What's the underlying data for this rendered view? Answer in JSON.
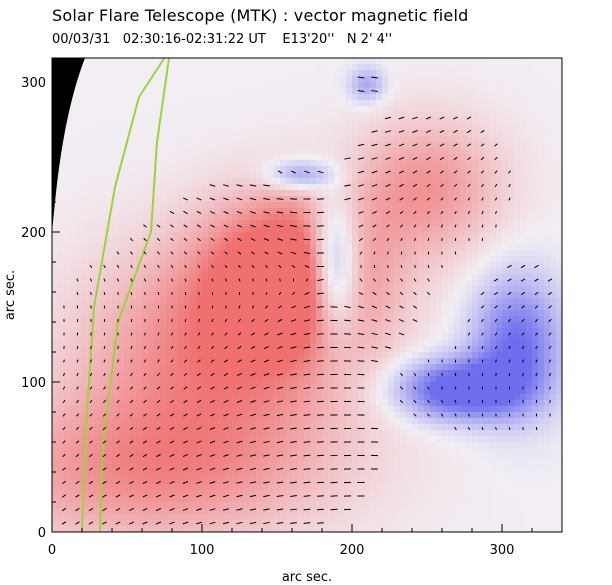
{
  "header": {
    "title": "Solar Flare Telescope (MTK) : vector magnetic field",
    "date": "00/03/31",
    "time_range": "02:30:16-02:31:22 UT",
    "position_e": "E13'20''",
    "position_n": "N 2' 4''"
  },
  "colors": {
    "positive": "#f07070",
    "negative": "#6d6dee",
    "neutral": "#f2eef4",
    "limb_contour": "#9bd33f",
    "off_disk": "#000000",
    "vectors": "#000000"
  },
  "chart_data": {
    "type": "heatmap",
    "title": "Solar Flare Telescope (MTK) : vector magnetic field",
    "xlabel": "arc sec.",
    "ylabel": "arc sec.",
    "xlim": [
      0,
      340
    ],
    "ylim": [
      0,
      316
    ],
    "x_ticks": [
      0,
      100,
      200,
      300
    ],
    "y_ticks": [
      0,
      100,
      200,
      300
    ],
    "grid": false,
    "polarity_regions": [
      {
        "polarity": "positive",
        "cx": 160,
        "cy": 172,
        "rx": 55,
        "ry": 50,
        "strength": 1.0
      },
      {
        "polarity": "positive",
        "cx": 110,
        "cy": 120,
        "rx": 90,
        "ry": 70,
        "strength": 0.6
      },
      {
        "polarity": "positive",
        "cx": 250,
        "cy": 230,
        "rx": 50,
        "ry": 45,
        "strength": 0.5
      },
      {
        "polarity": "positive",
        "cx": 60,
        "cy": 40,
        "rx": 120,
        "ry": 50,
        "strength": 0.5
      },
      {
        "polarity": "negative",
        "cx": 188,
        "cy": 175,
        "rx": 18,
        "ry": 45,
        "strength": 1.0
      },
      {
        "polarity": "negative",
        "cx": 270,
        "cy": 95,
        "rx": 40,
        "ry": 20,
        "strength": 0.9
      },
      {
        "polarity": "negative",
        "cx": 310,
        "cy": 125,
        "rx": 30,
        "ry": 45,
        "strength": 0.7
      },
      {
        "polarity": "negative",
        "cx": 165,
        "cy": 238,
        "rx": 22,
        "ry": 10,
        "strength": 0.5
      },
      {
        "polarity": "negative",
        "cx": 210,
        "cy": 298,
        "rx": 12,
        "ry": 12,
        "strength": 0.4
      }
    ],
    "limb_contours": [
      {
        "points": [
          [
            20,
            0
          ],
          [
            22,
            60
          ],
          [
            28,
            150
          ],
          [
            42,
            230
          ],
          [
            58,
            290
          ],
          [
            75,
            316
          ]
        ]
      },
      {
        "points": [
          [
            32,
            0
          ],
          [
            34,
            60
          ],
          [
            44,
            140
          ],
          [
            66,
            200
          ],
          [
            70,
            260
          ],
          [
            78,
            316
          ]
        ]
      }
    ]
  }
}
